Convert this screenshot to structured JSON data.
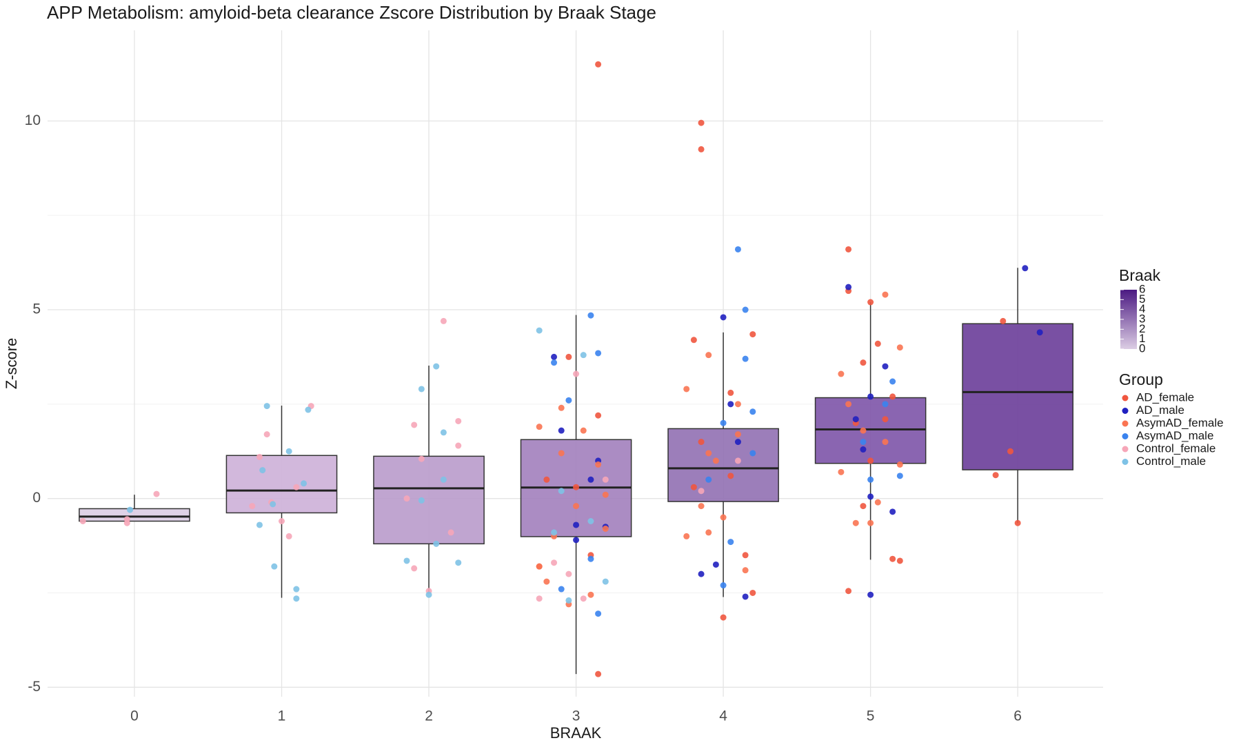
{
  "chart_data": {
    "type": "box",
    "title": "APP Metabolism: amyloid-beta clearance Zscore Distribution by Braak Stage",
    "x_label": "BRAAK",
    "y_label": "Z-score",
    "xlim": [
      -0.59,
      6.58
    ],
    "ylim": [
      -5.25,
      12.4
    ],
    "xticks": [
      0,
      1,
      2,
      3,
      4,
      5,
      6
    ],
    "yticks": [
      -5,
      0,
      5,
      10
    ],
    "minor_yticks": [
      -2.5,
      2.5,
      7.5
    ],
    "grid": true,
    "box_width": 0.75,
    "boxes": [
      {
        "x": 0,
        "whisker_low": -0.6,
        "q1": -0.6,
        "median": -0.48,
        "q3": -0.27,
        "whisker_high": 0.1,
        "color": "#dccde4"
      },
      {
        "x": 1,
        "whisker_low": -2.63,
        "q1": -0.38,
        "median": 0.21,
        "q3": 1.14,
        "whisker_high": 2.46,
        "color": "#cdb0d8"
      },
      {
        "x": 2,
        "whisker_low": -2.5,
        "q1": -1.2,
        "median": 0.27,
        "q3": 1.12,
        "whisker_high": 3.52,
        "color": "#b99bcb"
      },
      {
        "x": 3,
        "whisker_low": -4.65,
        "q1": -1.01,
        "median": 0.29,
        "q3": 1.56,
        "whisker_high": 4.86,
        "color": "#a27fbd"
      },
      {
        "x": 4,
        "whisker_low": -2.61,
        "q1": -0.08,
        "median": 0.8,
        "q3": 1.85,
        "whisker_high": 4.4,
        "color": "#9170b2"
      },
      {
        "x": 5,
        "whisker_low": -1.62,
        "q1": 0.93,
        "median": 1.83,
        "q3": 2.67,
        "whisker_high": 5.2,
        "color": "#7d54a8"
      },
      {
        "x": 6,
        "whisker_low": -0.65,
        "q1": 0.76,
        "median": 2.82,
        "q3": 4.63,
        "whisker_high": 6.11,
        "color": "#6a3d99"
      }
    ],
    "series": [
      {
        "name": "AD_female",
        "color": "#f0563f",
        "x": [
          3.15,
          3.15,
          3.85,
          3.85,
          4.0,
          4.85,
          5.0,
          4.85,
          5.2,
          6.0,
          5.9,
          5.95,
          5.85,
          2.95,
          3.15,
          2.8,
          3.1,
          3.0,
          2.75,
          3.8,
          4.05,
          3.85,
          4.2,
          3.8,
          4.15,
          4.05,
          4.2,
          4.85,
          5.05,
          4.95,
          4.9,
          5.15,
          5.0,
          4.95,
          5.15,
          5.1
        ],
        "values": [
          11.5,
          -4.65,
          9.95,
          9.25,
          -3.15,
          6.6,
          5.2,
          -2.45,
          -1.65,
          -0.65,
          4.7,
          1.25,
          0.62,
          3.75,
          2.2,
          0.5,
          -1.5,
          0.3,
          -1.8,
          4.2,
          2.8,
          1.5,
          4.35,
          0.3,
          -1.5,
          0.6,
          -2.5,
          5.5,
          4.1,
          3.6,
          2.0,
          2.7,
          1.0,
          -0.2,
          -1.6,
          2.1
        ]
      },
      {
        "name": "AD_male",
        "color": "#2020c0",
        "x": [
          2.85,
          2.9,
          3.1,
          3.15,
          3.0,
          3.2,
          4.0,
          3.85,
          3.95,
          4.15,
          4.1,
          4.05,
          4.85,
          5.0,
          5.1,
          5.0,
          5.15,
          5.0,
          6.05,
          6.15,
          4.95,
          4.9,
          3.0
        ],
        "values": [
          3.75,
          1.8,
          0.5,
          1.0,
          -1.1,
          -0.75,
          4.8,
          -2.0,
          -1.75,
          -2.6,
          1.5,
          2.5,
          5.6,
          2.7,
          3.5,
          0.05,
          -0.35,
          -2.55,
          6.1,
          4.4,
          1.3,
          2.1,
          -0.7
        ]
      },
      {
        "name": "AsymAD_female",
        "color": "#fa7452",
        "x": [
          2.9,
          3.05,
          2.75,
          3.2,
          2.95,
          2.85,
          3.15,
          2.75,
          3.1,
          2.9,
          3.0,
          3.2,
          2.8,
          3.9,
          3.75,
          3.95,
          4.1,
          4.0,
          3.9,
          3.75,
          4.15,
          3.9,
          3.85,
          4.1,
          5.1,
          4.8,
          5.2,
          5.1,
          4.8,
          4.9,
          5.05,
          5.2,
          5.0,
          4.85,
          4.95
        ],
        "values": [
          2.4,
          1.8,
          1.9,
          -0.8,
          -2.8,
          -1.0,
          0.9,
          -1.8,
          -2.55,
          1.2,
          -0.2,
          0.1,
          -2.2,
          3.8,
          2.9,
          1.0,
          1.7,
          -0.5,
          -0.9,
          -1.0,
          -1.9,
          1.2,
          -0.2,
          2.5,
          5.4,
          3.3,
          4.0,
          1.5,
          0.7,
          -0.65,
          -0.1,
          0.9,
          -0.65,
          2.5,
          1.8
        ]
      },
      {
        "name": "AsymAD_male",
        "color": "#3a83ee",
        "x": [
          3.1,
          3.15,
          2.85,
          3.15,
          2.9,
          3.1,
          2.95,
          4.1,
          4.15,
          4.15,
          4.0,
          4.2,
          4.05,
          4.0,
          4.2,
          3.9,
          5.15,
          5.1,
          5.0,
          4.95,
          5.2
        ],
        "values": [
          4.85,
          3.85,
          3.6,
          -3.05,
          -2.4,
          -1.6,
          2.6,
          6.6,
          5.0,
          3.7,
          2.0,
          2.3,
          -1.15,
          -2.3,
          1.2,
          0.5,
          3.1,
          2.5,
          0.5,
          1.5,
          0.6
        ]
      },
      {
        "name": "Control_female",
        "color": "#f6a6b8",
        "x": [
          -0.35,
          0.15,
          -0.05,
          -0.05,
          0.9,
          0.8,
          1.2,
          1.0,
          1.05,
          0.85,
          0.93,
          1.1,
          1.9,
          2.1,
          1.9,
          2.2,
          2.15,
          1.95,
          2.0,
          2.2,
          1.85,
          2.75,
          3.0,
          3.05,
          2.95,
          3.2,
          2.85,
          3.85,
          4.1
        ],
        "values": [
          -0.6,
          0.12,
          -0.55,
          -0.65,
          1.7,
          -0.2,
          2.45,
          -0.6,
          -1.0,
          1.1,
          -0.1,
          0.3,
          1.95,
          4.7,
          -1.85,
          2.05,
          -0.9,
          1.05,
          -2.45,
          1.4,
          0.0,
          -2.65,
          3.3,
          -2.65,
          -2.0,
          0.5,
          -1.7,
          0.2,
          1.0
        ]
      },
      {
        "name": "Control_male",
        "color": "#7ec2e6",
        "x": [
          -0.03,
          0.9,
          0.85,
          1.1,
          1.05,
          1.18,
          0.95,
          1.15,
          1.1,
          0.94,
          0.87,
          1.85,
          1.95,
          2.05,
          2.1,
          2.2,
          2.05,
          2.0,
          2.1,
          1.95,
          2.75,
          2.85,
          3.2,
          2.95,
          3.05,
          3.1,
          2.9
        ],
        "values": [
          -0.3,
          2.45,
          -0.7,
          -2.4,
          1.25,
          2.35,
          -1.8,
          0.4,
          -2.65,
          -0.15,
          0.75,
          -1.65,
          2.9,
          3.5,
          1.75,
          -1.7,
          -1.2,
          -2.55,
          0.5,
          -0.05,
          4.45,
          -0.9,
          -2.2,
          -2.7,
          3.8,
          -0.6,
          0.2
        ]
      }
    ],
    "legend_title": "Group",
    "colorbar": {
      "title": "Braak",
      "ticks": [
        0,
        1,
        2,
        3,
        4,
        5,
        6
      ],
      "colors": [
        "#dccde4",
        "#4b1a82"
      ]
    }
  }
}
